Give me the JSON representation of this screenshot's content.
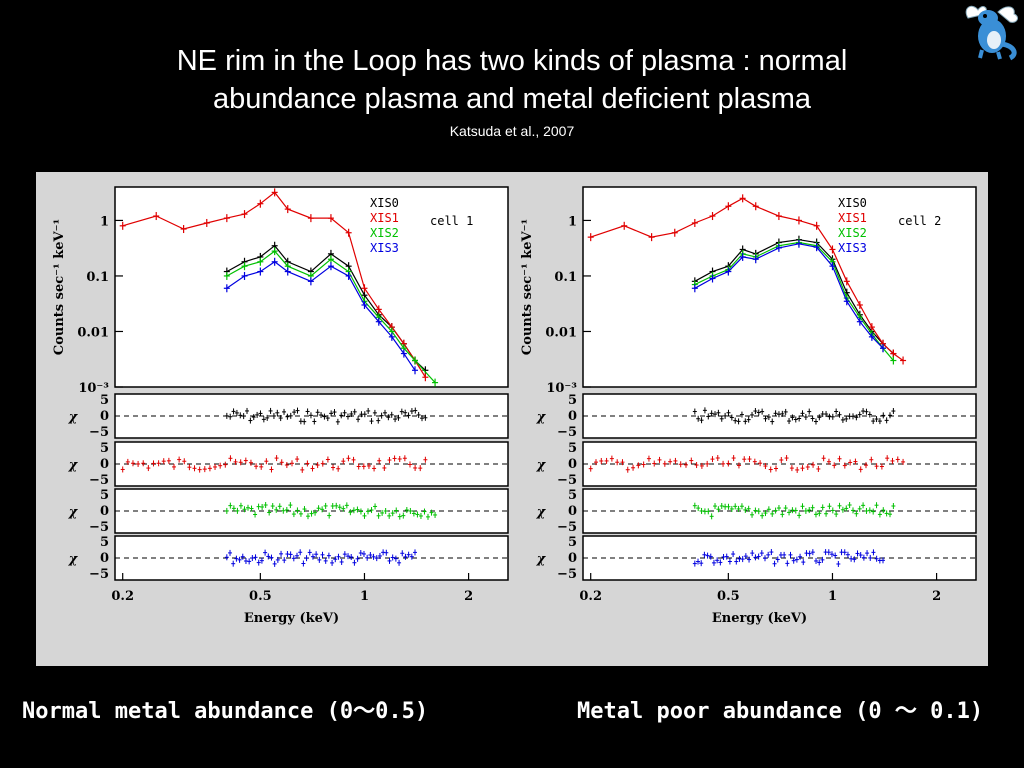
{
  "slide": {
    "title_line1": "NE rim in the Loop has two kinds of plasma : normal",
    "title_line2": "abundance plasma and metal deficient plasma",
    "citation": "Katsuda et al., 2007",
    "caption_left": "Normal metal abundance (0～0.5)",
    "caption_right": "Metal poor abundance (0 ～ 0.1)",
    "mascot_icon": "blue-dragon-mascot-icon"
  },
  "chart_data": [
    {
      "type": "scatter",
      "panel": "cell 1",
      "annotation": "cell 1",
      "ylabel": "Counts sec⁻¹ keV⁻¹",
      "xlabel": "Energy (keV)",
      "xscale": "log",
      "yscale": "log",
      "xlim": [
        0.19,
        2.6
      ],
      "ylim": [
        0.001,
        4
      ],
      "x_ticks": [
        "0.2",
        "0.5",
        "1",
        "2"
      ],
      "y_ticks": [
        "1",
        "0.1",
        "0.01",
        "10⁻³"
      ],
      "legend": [
        "XIS0",
        "XIS1",
        "XIS2",
        "XIS3"
      ],
      "colors": {
        "XIS0": "#000000",
        "XIS1": "#e00000",
        "XIS2": "#00c000",
        "XIS3": "#0000e0"
      },
      "residual_ylabel": "χ",
      "residual_ticks": [
        "5",
        "0",
        "−5"
      ],
      "series": [
        {
          "name": "XIS0",
          "x": [
            0.4,
            0.45,
            0.5,
            0.55,
            0.6,
            0.7,
            0.8,
            0.9,
            1.0,
            1.1,
            1.2,
            1.3,
            1.4,
            1.5
          ],
          "y": [
            0.12,
            0.18,
            0.22,
            0.35,
            0.18,
            0.12,
            0.25,
            0.15,
            0.045,
            0.02,
            0.012,
            0.006,
            0.003,
            0.002
          ]
        },
        {
          "name": "XIS1",
          "x": [
            0.2,
            0.25,
            0.3,
            0.35,
            0.4,
            0.45,
            0.5,
            0.55,
            0.6,
            0.7,
            0.8,
            0.9,
            1.0,
            1.1,
            1.2,
            1.3,
            1.4,
            1.5
          ],
          "y": [
            0.8,
            1.2,
            0.7,
            0.9,
            1.1,
            1.3,
            2.0,
            3.2,
            1.6,
            1.1,
            1.1,
            0.6,
            0.06,
            0.025,
            0.012,
            0.006,
            0.003,
            0.0015
          ]
        },
        {
          "name": "XIS2",
          "x": [
            0.4,
            0.45,
            0.5,
            0.55,
            0.6,
            0.7,
            0.8,
            0.9,
            1.0,
            1.1,
            1.2,
            1.3,
            1.4,
            1.6
          ],
          "y": [
            0.1,
            0.15,
            0.18,
            0.28,
            0.15,
            0.1,
            0.2,
            0.12,
            0.035,
            0.018,
            0.01,
            0.005,
            0.003,
            0.0012
          ]
        },
        {
          "name": "XIS3",
          "x": [
            0.4,
            0.45,
            0.5,
            0.55,
            0.6,
            0.7,
            0.8,
            0.9,
            1.0,
            1.1,
            1.2,
            1.3,
            1.4
          ],
          "y": [
            0.06,
            0.1,
            0.12,
            0.18,
            0.12,
            0.08,
            0.15,
            0.1,
            0.03,
            0.015,
            0.008,
            0.004,
            0.002
          ]
        }
      ]
    },
    {
      "type": "scatter",
      "panel": "cell 2",
      "annotation": "cell 2",
      "ylabel": "Counts sec⁻¹ keV⁻¹",
      "xlabel": "Energy (keV)",
      "xscale": "log",
      "yscale": "log",
      "xlim": [
        0.19,
        2.6
      ],
      "ylim": [
        0.001,
        4
      ],
      "x_ticks": [
        "0.2",
        "0.5",
        "1",
        "2"
      ],
      "y_ticks": [
        "1",
        "0.1",
        "0.01",
        "10⁻³"
      ],
      "legend": [
        "XIS0",
        "XIS1",
        "XIS2",
        "XIS3"
      ],
      "colors": {
        "XIS0": "#000000",
        "XIS1": "#e00000",
        "XIS2": "#00c000",
        "XIS3": "#0000e0"
      },
      "residual_ylabel": "χ",
      "residual_ticks": [
        "5",
        "0",
        "−5"
      ],
      "series": [
        {
          "name": "XIS0",
          "x": [
            0.4,
            0.45,
            0.5,
            0.55,
            0.6,
            0.7,
            0.8,
            0.9,
            1.0,
            1.1,
            1.2,
            1.3,
            1.4,
            1.5
          ],
          "y": [
            0.08,
            0.12,
            0.15,
            0.3,
            0.25,
            0.4,
            0.45,
            0.4,
            0.2,
            0.05,
            0.02,
            0.01,
            0.006,
            0.004
          ]
        },
        {
          "name": "XIS1",
          "x": [
            0.2,
            0.25,
            0.3,
            0.35,
            0.4,
            0.45,
            0.5,
            0.55,
            0.6,
            0.7,
            0.8,
            0.9,
            1.0,
            1.1,
            1.2,
            1.3,
            1.4,
            1.5,
            1.6
          ],
          "y": [
            0.5,
            0.8,
            0.5,
            0.6,
            0.9,
            1.2,
            1.8,
            2.5,
            1.8,
            1.2,
            1.0,
            0.8,
            0.3,
            0.08,
            0.03,
            0.012,
            0.006,
            0.004,
            0.003
          ]
        },
        {
          "name": "XIS2",
          "x": [
            0.4,
            0.45,
            0.5,
            0.55,
            0.6,
            0.7,
            0.8,
            0.9,
            1.0,
            1.1,
            1.2,
            1.3,
            1.4,
            1.5
          ],
          "y": [
            0.07,
            0.1,
            0.13,
            0.25,
            0.22,
            0.35,
            0.4,
            0.35,
            0.18,
            0.04,
            0.018,
            0.009,
            0.005,
            0.003
          ]
        },
        {
          "name": "XIS3",
          "x": [
            0.4,
            0.45,
            0.5,
            0.55,
            0.6,
            0.7,
            0.8,
            0.9,
            1.0,
            1.1,
            1.2,
            1.3,
            1.4
          ],
          "y": [
            0.06,
            0.09,
            0.12,
            0.22,
            0.2,
            0.32,
            0.38,
            0.33,
            0.15,
            0.035,
            0.015,
            0.008,
            0.005
          ]
        }
      ]
    }
  ]
}
